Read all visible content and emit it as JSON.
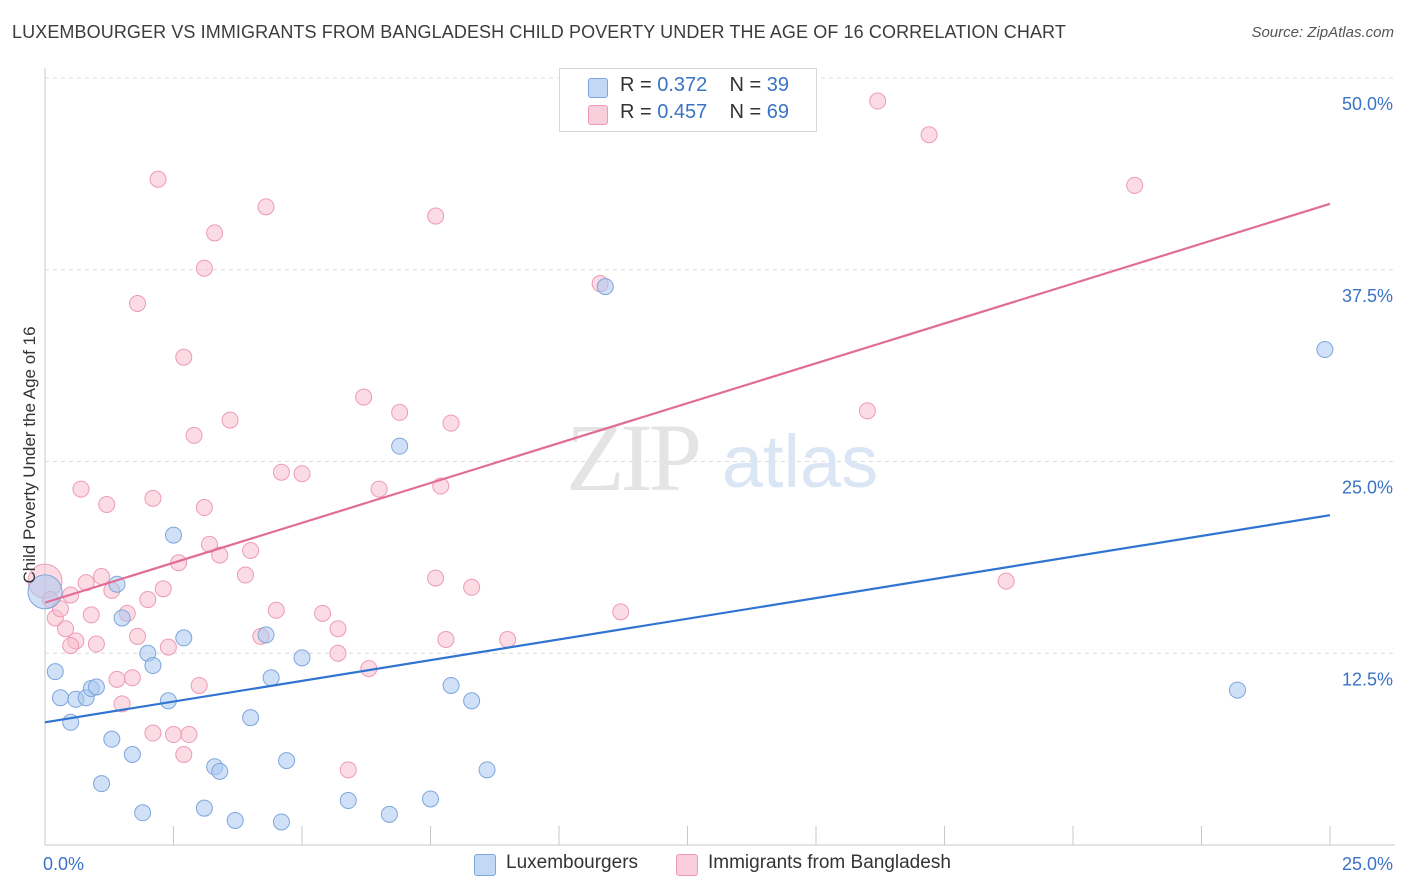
{
  "header": {
    "title": "LUXEMBOURGER VS IMMIGRANTS FROM BANGLADESH CHILD POVERTY UNDER THE AGE OF 16 CORRELATION CHART",
    "source": "Source: ZipAtlas.com"
  },
  "watermark": {
    "zip": "ZIP",
    "atlas": "atlas"
  },
  "legend": {
    "r_label": "R = ",
    "n_label": "N = ",
    "rows": [
      {
        "r": "0.372",
        "n": "39",
        "color": "#a9c8f0"
      },
      {
        "r": "0.457",
        "n": "69",
        "color": "#f7b9cb"
      }
    ]
  },
  "bottom_legend": [
    {
      "label": "Luxembourgers",
      "color": "#a9c8f0"
    },
    {
      "label": "Immigrants from Bangladesh",
      "color": "#f7b9cb"
    }
  ],
  "chart_data": {
    "type": "scatter",
    "title": "LUXEMBOURGER VS IMMIGRANTS FROM BANGLADESH CHILD POVERTY UNDER THE AGE OF 16 CORRELATION CHART",
    "xlabel": "",
    "ylabel": "Child Poverty Under the Age of 16",
    "xlim": [
      0,
      25
    ],
    "ylim": [
      0,
      50
    ],
    "x_tick_labels": [
      "0.0%",
      "25.0%"
    ],
    "y_tick_labels": [
      "12.5%",
      "25.0%",
      "37.5%",
      "50.0%"
    ],
    "y_ticks": [
      12.5,
      25,
      37.5,
      50
    ],
    "grid": "horizontal dashed",
    "legend_position": "top-center",
    "colors": {
      "blue_point": "#a9c8f0",
      "blue_line": "#2e74d0",
      "pink_point": "#f7b9cb",
      "pink_line": "#e16d97",
      "tick_label": "#3a73c5"
    },
    "series": [
      {
        "name": "Luxembourgers",
        "r": 0.372,
        "n": 39,
        "trend": {
          "x": [
            0,
            25
          ],
          "y": [
            8.0,
            21.5
          ]
        },
        "points": [
          {
            "x": 0.0,
            "y": 16.5,
            "big": true
          },
          {
            "x": 0.2,
            "y": 11.3
          },
          {
            "x": 0.3,
            "y": 9.6
          },
          {
            "x": 0.5,
            "y": 8.0
          },
          {
            "x": 0.6,
            "y": 9.5
          },
          {
            "x": 0.8,
            "y": 9.6
          },
          {
            "x": 0.9,
            "y": 10.2
          },
          {
            "x": 1.0,
            "y": 10.3
          },
          {
            "x": 1.1,
            "y": 4.0
          },
          {
            "x": 1.3,
            "y": 6.9
          },
          {
            "x": 1.4,
            "y": 17.0
          },
          {
            "x": 1.5,
            "y": 14.8
          },
          {
            "x": 1.7,
            "y": 5.9
          },
          {
            "x": 1.9,
            "y": 2.1
          },
          {
            "x": 2.0,
            "y": 12.5
          },
          {
            "x": 2.1,
            "y": 11.7
          },
          {
            "x": 2.4,
            "y": 9.4
          },
          {
            "x": 2.5,
            "y": 20.2
          },
          {
            "x": 2.7,
            "y": 13.5
          },
          {
            "x": 3.1,
            "y": 2.4
          },
          {
            "x": 3.3,
            "y": 5.1
          },
          {
            "x": 3.4,
            "y": 4.8
          },
          {
            "x": 3.7,
            "y": 1.6
          },
          {
            "x": 4.0,
            "y": 8.3
          },
          {
            "x": 4.3,
            "y": 13.7
          },
          {
            "x": 4.4,
            "y": 10.9
          },
          {
            "x": 4.6,
            "y": 1.5
          },
          {
            "x": 4.7,
            "y": 5.5
          },
          {
            "x": 5.0,
            "y": 12.2
          },
          {
            "x": 5.9,
            "y": 2.9
          },
          {
            "x": 6.7,
            "y": 2.0
          },
          {
            "x": 6.9,
            "y": 26.0
          },
          {
            "x": 7.5,
            "y": 3.0
          },
          {
            "x": 7.9,
            "y": 10.4
          },
          {
            "x": 8.3,
            "y": 9.4
          },
          {
            "x": 8.6,
            "y": 4.9
          },
          {
            "x": 10.9,
            "y": 36.4
          },
          {
            "x": 23.2,
            "y": 10.1
          },
          {
            "x": 24.9,
            "y": 32.3
          }
        ]
      },
      {
        "name": "Immigrants from Bangladesh",
        "r": 0.457,
        "n": 69,
        "trend": {
          "x": [
            0,
            25
          ],
          "y": [
            15.8,
            41.8
          ]
        },
        "points": [
          {
            "x": 0.0,
            "y": 17.2,
            "big": true
          },
          {
            "x": 0.1,
            "y": 16.0
          },
          {
            "x": 0.2,
            "y": 14.8
          },
          {
            "x": 0.3,
            "y": 15.4
          },
          {
            "x": 0.4,
            "y": 14.1
          },
          {
            "x": 0.5,
            "y": 16.3
          },
          {
            "x": 0.6,
            "y": 13.3
          },
          {
            "x": 0.7,
            "y": 23.2
          },
          {
            "x": 0.8,
            "y": 17.1
          },
          {
            "x": 0.9,
            "y": 15.0
          },
          {
            "x": 1.0,
            "y": 13.1
          },
          {
            "x": 1.1,
            "y": 17.5
          },
          {
            "x": 1.2,
            "y": 22.2
          },
          {
            "x": 1.3,
            "y": 16.6
          },
          {
            "x": 1.4,
            "y": 10.8
          },
          {
            "x": 1.5,
            "y": 9.2
          },
          {
            "x": 1.6,
            "y": 15.1
          },
          {
            "x": 1.7,
            "y": 10.9
          },
          {
            "x": 1.8,
            "y": 13.6
          },
          {
            "x": 1.8,
            "y": 35.3
          },
          {
            "x": 2.0,
            "y": 16.0
          },
          {
            "x": 2.1,
            "y": 22.6
          },
          {
            "x": 2.1,
            "y": 7.3
          },
          {
            "x": 2.2,
            "y": 43.4
          },
          {
            "x": 2.3,
            "y": 16.7
          },
          {
            "x": 2.4,
            "y": 12.9
          },
          {
            "x": 2.5,
            "y": 7.2
          },
          {
            "x": 2.6,
            "y": 18.4
          },
          {
            "x": 2.7,
            "y": 31.8
          },
          {
            "x": 2.7,
            "y": 5.9
          },
          {
            "x": 2.8,
            "y": 7.2
          },
          {
            "x": 2.9,
            "y": 26.7
          },
          {
            "x": 3.0,
            "y": 10.4
          },
          {
            "x": 3.1,
            "y": 37.6
          },
          {
            "x": 3.1,
            "y": 22.0
          },
          {
            "x": 3.2,
            "y": 19.6
          },
          {
            "x": 3.3,
            "y": 39.9
          },
          {
            "x": 3.4,
            "y": 18.9
          },
          {
            "x": 3.6,
            "y": 27.7
          },
          {
            "x": 3.9,
            "y": 17.6
          },
          {
            "x": 4.0,
            "y": 19.2
          },
          {
            "x": 4.2,
            "y": 13.6
          },
          {
            "x": 4.3,
            "y": 41.6
          },
          {
            "x": 4.5,
            "y": 15.3
          },
          {
            "x": 4.6,
            "y": 24.3
          },
          {
            "x": 5.0,
            "y": 24.2
          },
          {
            "x": 5.4,
            "y": 15.1
          },
          {
            "x": 5.7,
            "y": 14.1
          },
          {
            "x": 5.7,
            "y": 12.5
          },
          {
            "x": 5.9,
            "y": 4.9
          },
          {
            "x": 6.2,
            "y": 29.2
          },
          {
            "x": 6.3,
            "y": 11.5
          },
          {
            "x": 6.5,
            "y": 23.2
          },
          {
            "x": 6.9,
            "y": 28.2
          },
          {
            "x": 7.6,
            "y": 41.0
          },
          {
            "x": 7.6,
            "y": 17.4
          },
          {
            "x": 7.7,
            "y": 23.4
          },
          {
            "x": 7.8,
            "y": 13.4
          },
          {
            "x": 7.9,
            "y": 27.5
          },
          {
            "x": 8.3,
            "y": 16.8
          },
          {
            "x": 9.0,
            "y": 13.4
          },
          {
            "x": 10.8,
            "y": 36.6
          },
          {
            "x": 11.2,
            "y": 15.2
          },
          {
            "x": 16.0,
            "y": 28.3
          },
          {
            "x": 16.2,
            "y": 48.5
          },
          {
            "x": 17.2,
            "y": 46.3
          },
          {
            "x": 18.7,
            "y": 17.2
          },
          {
            "x": 21.2,
            "y": 43.0
          },
          {
            "x": 0.5,
            "y": 13.0
          }
        ]
      }
    ]
  }
}
